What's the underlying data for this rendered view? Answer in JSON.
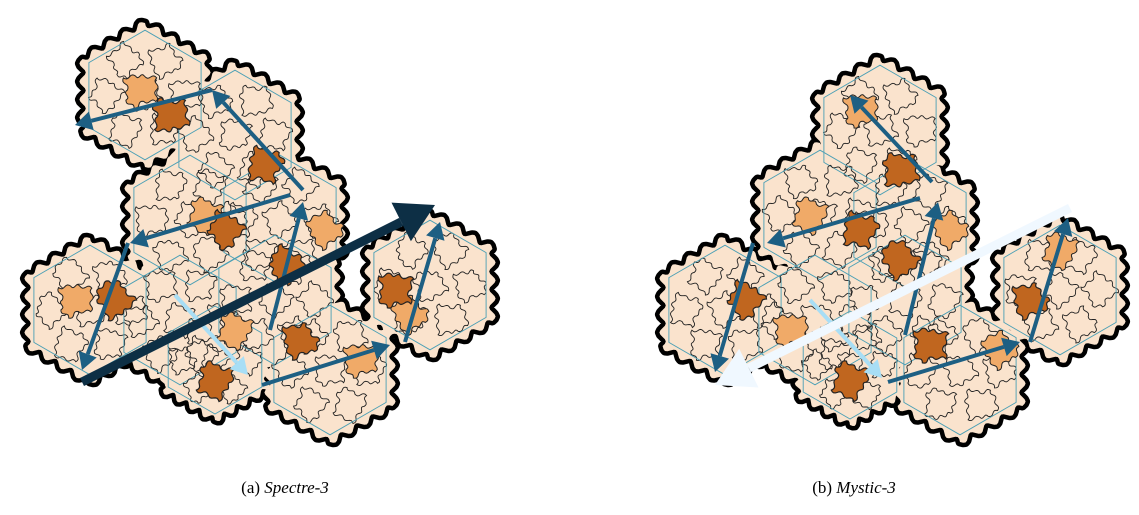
{
  "panels": [
    {
      "tag": "(a)",
      "name": "Spectre-3",
      "colors": {
        "light": "#fae3cd",
        "medium": "#f0aa68",
        "dark": "#c0661f",
        "outline": "#000000",
        "inner_line": "#4a9fb5"
      },
      "arrows": [
        {
          "from": [
            212,
            90
          ],
          "to": [
            75,
            125
          ],
          "color": "#1d5f83",
          "width": 4
        },
        {
          "from": [
            303,
            190
          ],
          "to": [
            212,
            90
          ],
          "color": "#1d5f83",
          "width": 4
        },
        {
          "from": [
            290,
            195
          ],
          "to": [
            130,
            243
          ],
          "color": "#1d5f83",
          "width": 4
        },
        {
          "from": [
            128,
            243
          ],
          "to": [
            82,
            370
          ],
          "color": "#1d5f83",
          "width": 4
        },
        {
          "from": [
            270,
            330
          ],
          "to": [
            303,
            202
          ],
          "color": "#1d5f83",
          "width": 4
        },
        {
          "from": [
            405,
            342
          ],
          "to": [
            440,
            222
          ],
          "color": "#1d5f83",
          "width": 4
        },
        {
          "from": [
            262,
            385
          ],
          "to": [
            390,
            345
          ],
          "color": "#1d5f83",
          "width": 4
        },
        {
          "from": [
            175,
            295
          ],
          "to": [
            248,
            375
          ],
          "color": "#a8def5",
          "width": 4
        },
        {
          "from": [
            82,
            382
          ],
          "to": [
            435,
            205
          ],
          "color": "#0d2f45",
          "width": 9
        }
      ]
    },
    {
      "tag": "(b)",
      "name": "Mystic-3",
      "colors": {
        "light": "#fae3cd",
        "medium": "#f0aa68",
        "dark": "#c0661f",
        "outline": "#000000",
        "inner_line": "#4a9fb5"
      },
      "arrows": [
        {
          "from": [
            932,
            182
          ],
          "to": [
            850,
            95
          ],
          "color": "#1d5f83",
          "width": 4
        },
        {
          "from": [
            920,
            198
          ],
          "to": [
            767,
            243
          ],
          "color": "#1d5f83",
          "width": 4
        },
        {
          "from": [
            753,
            243
          ],
          "to": [
            715,
            372
          ],
          "color": "#1d5f83",
          "width": 4
        },
        {
          "from": [
            905,
            335
          ],
          "to": [
            938,
            202
          ],
          "color": "#1d5f83",
          "width": 4
        },
        {
          "from": [
            1030,
            342
          ],
          "to": [
            1068,
            218
          ],
          "color": "#1d5f83",
          "width": 4
        },
        {
          "from": [
            888,
            382
          ],
          "to": [
            1020,
            342
          ],
          "color": "#1d5f83",
          "width": 4
        },
        {
          "from": [
            810,
            300
          ],
          "to": [
            882,
            378
          ],
          "color": "#a8def5",
          "width": 4
        },
        {
          "from": [
            1070,
            208
          ],
          "to": [
            715,
            385
          ],
          "color": "#f0f8ff",
          "width": 9
        }
      ]
    }
  ]
}
